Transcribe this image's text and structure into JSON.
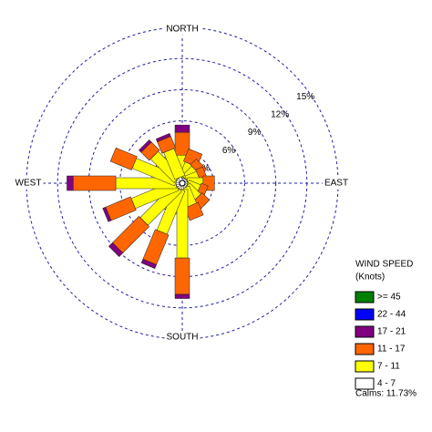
{
  "chart_data": {
    "type": "wind_rose",
    "categories": [
      "NORTH",
      null,
      null,
      null,
      "EAST",
      null,
      null,
      null,
      "SOUTH",
      null,
      null,
      null,
      "WEST",
      null,
      null,
      null
    ],
    "series": [
      {
        "name": ">= 45",
        "color": "#008000",
        "values": [
          0,
          0,
          0,
          0,
          0,
          0,
          0,
          0,
          0,
          0,
          0,
          0,
          0,
          0,
          0,
          0
        ]
      },
      {
        "name": "22 - 44",
        "color": "#0000ff",
        "values": [
          0,
          0,
          0,
          0,
          0,
          0,
          0,
          0,
          0,
          0,
          0,
          0,
          0,
          0,
          0,
          0
        ]
      },
      {
        "name": "17 - 21",
        "color": "#800080",
        "values": [
          0.7,
          0,
          0,
          0,
          0,
          0,
          0,
          0,
          0.4,
          0.4,
          0.5,
          0.3,
          0.6,
          0,
          0.3,
          0.3
        ]
      },
      {
        "name": "11 - 17",
        "color": "#ff6600",
        "values": [
          2.2,
          1.3,
          0.8,
          0.7,
          1.1,
          0.7,
          1.0,
          1.3,
          3.5,
          3.1,
          3.6,
          2.6,
          4.1,
          2.2,
          1.1,
          1.2
        ]
      },
      {
        "name": "7 - 11",
        "color": "#ffff00",
        "values": [
          2.2,
          1.5,
          1.3,
          1.2,
          1.5,
          1.2,
          1.5,
          1.8,
          6.6,
          4.5,
          4.6,
          4.5,
          5.8,
          4.4,
          3.2,
          2.8
        ]
      },
      {
        "name": "4 - 7",
        "color": "#ffffff",
        "values": [
          0.5,
          0.5,
          0.5,
          0.5,
          0.5,
          0.5,
          0.5,
          0.5,
          0.6,
          0.6,
          0.6,
          0.6,
          0.6,
          0.6,
          0.6,
          0.6
        ]
      }
    ],
    "rlim": [
      0,
      15
    ],
    "rticks": [
      {
        "value": 3,
        "label": "3%"
      },
      {
        "value": 6,
        "label": "6%"
      },
      {
        "value": 9,
        "label": "9%"
      },
      {
        "value": 12,
        "label": "12%"
      },
      {
        "value": 15,
        "label": "15%"
      }
    ],
    "legend_title": [
      "WIND SPEED",
      "(Knots)"
    ],
    "calms_label": "Calms: 11.73%"
  }
}
